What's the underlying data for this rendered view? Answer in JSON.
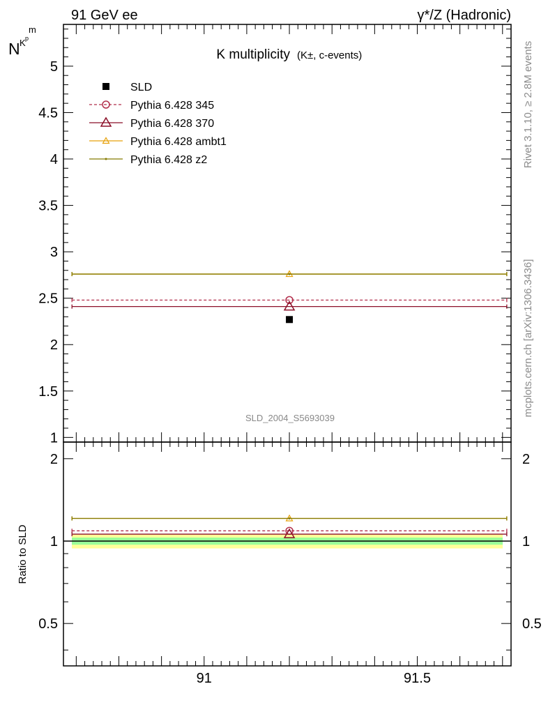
{
  "header": {
    "left": "91 GeV ee",
    "right": "γ*/Z (Hadronic)"
  },
  "side_text": {
    "rivet": "Rivet 3.1.10, ≥ 2.8M events",
    "mcplots": "mcplots.cern.ch [arXiv:1306.3436]"
  },
  "chart_data": {
    "type": "scatter",
    "title_main": "K multiplicity",
    "title_sub": "(K±, c-events)",
    "analysis_label": "SLD_2004_S5693039",
    "ylabel_main": "N",
    "ylabel_sub1": "K",
    "ylabel_sub2": "p",
    "ylabel_sub3": "m",
    "ylabel_ratio": "Ratio to SLD",
    "xlim": [
      90.67,
      91.72
    ],
    "ylim_main": [
      0.95,
      5.45
    ],
    "ylim_ratio": [
      0.35,
      2.3
    ],
    "log_ratio": true,
    "x_ticks": [
      {
        "value": 91,
        "label": "91"
      },
      {
        "value": 91.5,
        "label": "91.5"
      }
    ],
    "y_ticks_main": [
      {
        "value": 1,
        "label": "1"
      },
      {
        "value": 1.5,
        "label": "1.5"
      },
      {
        "value": 2,
        "label": "2"
      },
      {
        "value": 2.5,
        "label": "2.5"
      },
      {
        "value": 3,
        "label": "3"
      },
      {
        "value": 3.5,
        "label": "3.5"
      },
      {
        "value": 4,
        "label": "4"
      },
      {
        "value": 4.5,
        "label": "4.5"
      },
      {
        "value": 5,
        "label": "5"
      }
    ],
    "y_ticks_ratio": [
      {
        "value": 0.5,
        "label": "0.5"
      },
      {
        "value": 1,
        "label": "1"
      },
      {
        "value": 2,
        "label": "2"
      }
    ],
    "data": {
      "name": "SLD",
      "x": 91.2,
      "y": 2.27,
      "band_inner": [
        0.97,
        1.03
      ],
      "band_outer": [
        0.94,
        1.06
      ]
    },
    "series": [
      {
        "name": "Pythia 6.428 345",
        "y": 2.48,
        "ratio": 1.09,
        "color": "#b22d4a",
        "marker": "circle",
        "dashed": true
      },
      {
        "name": "Pythia 6.428 370",
        "y": 2.41,
        "ratio": 1.06,
        "color": "#8b0f28",
        "marker": "triangle",
        "dashed": false
      },
      {
        "name": "Pythia 6.428 ambt1",
        "y": 2.76,
        "ratio": 1.21,
        "color": "#e6a00a",
        "marker": "triangle-small",
        "dashed": false
      },
      {
        "name": "Pythia 6.428 z2",
        "y": 2.76,
        "ratio": 1.21,
        "color": "#857a00",
        "marker": "dot",
        "dashed": false
      }
    ],
    "x_range": [
      90.69,
      91.71
    ]
  }
}
